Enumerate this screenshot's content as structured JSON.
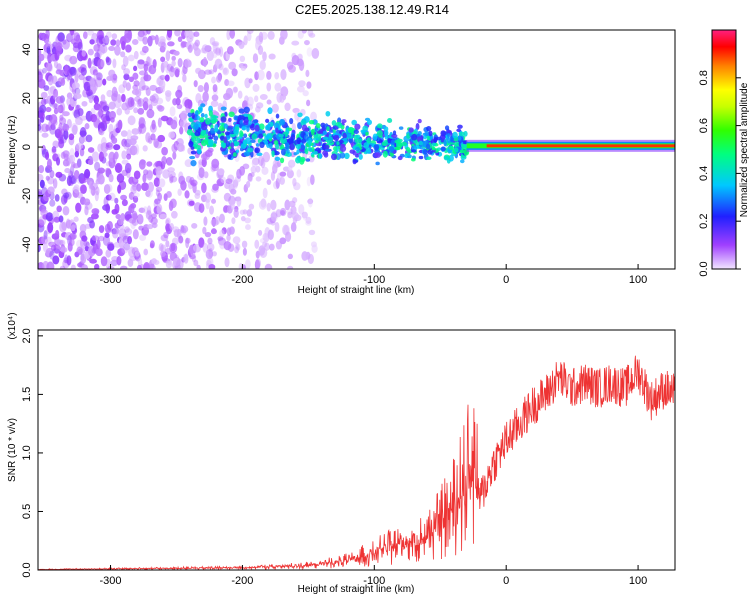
{
  "title": "C2E5.2025.138.12.49.R14",
  "chart_data": [
    {
      "type": "heatmap",
      "title": "C2E5.2025.138.12.49.R14",
      "xlabel": "Height of straight line (km)",
      "ylabel": "Frequency (Hz)",
      "xlim": [
        -355,
        128
      ],
      "ylim": [
        -50,
        48
      ],
      "xticks": [
        -300,
        -200,
        -100,
        0,
        100
      ],
      "yticks": [
        -40,
        -20,
        0,
        20,
        40
      ],
      "grid": false,
      "colorbar": {
        "label": "Normalized spectral amplitude",
        "range": [
          0.0,
          1.0
        ],
        "ticks": [
          "0.0",
          "0.2",
          "0.4",
          "0.6",
          "0.8"
        ],
        "colormap": "rainbow"
      },
      "features": [
        {
          "name": "noise band",
          "x_range": [
            -355,
            -145
          ],
          "freq_range": [
            -50,
            48
          ],
          "amplitude": 0.1
        },
        {
          "name": "signal spread",
          "x_range": [
            -240,
            -30
          ],
          "freq_range": [
            -10,
            15
          ],
          "amplitude": 0.25
        },
        {
          "name": "carrier line",
          "x_range": [
            -30,
            128
          ],
          "freq_center": 0.5,
          "amplitude": 0.9
        }
      ]
    },
    {
      "type": "line",
      "xlabel": "Height of straight line (km)",
      "ylabel": "SNR (10 * v/v)",
      "y_multiplier": "(x10⁴)",
      "xlim": [
        -355,
        128
      ],
      "ylim": [
        0,
        2.05
      ],
      "xticks": [
        -300,
        -200,
        -100,
        0,
        100
      ],
      "yticks": [
        "0.0",
        "0.5",
        "1.0",
        "1.5",
        "2.0"
      ],
      "grid": false,
      "color": "#ee3333",
      "x": [
        -355,
        -300,
        -250,
        -200,
        -150,
        -120,
        -100,
        -80,
        -60,
        -50,
        -40,
        -30,
        -25,
        -20,
        -10,
        0,
        10,
        20,
        30,
        40,
        50,
        60,
        70,
        80,
        90,
        100,
        110,
        120,
        128
      ],
      "y": [
        0.005,
        0.01,
        0.015,
        0.02,
        0.04,
        0.08,
        0.15,
        0.22,
        0.28,
        0.4,
        0.55,
        0.75,
        0.95,
        0.6,
        0.9,
        1.1,
        1.25,
        1.4,
        1.5,
        1.65,
        1.55,
        1.6,
        1.55,
        1.6,
        1.55,
        1.7,
        1.45,
        1.55,
        1.5
      ]
    }
  ]
}
